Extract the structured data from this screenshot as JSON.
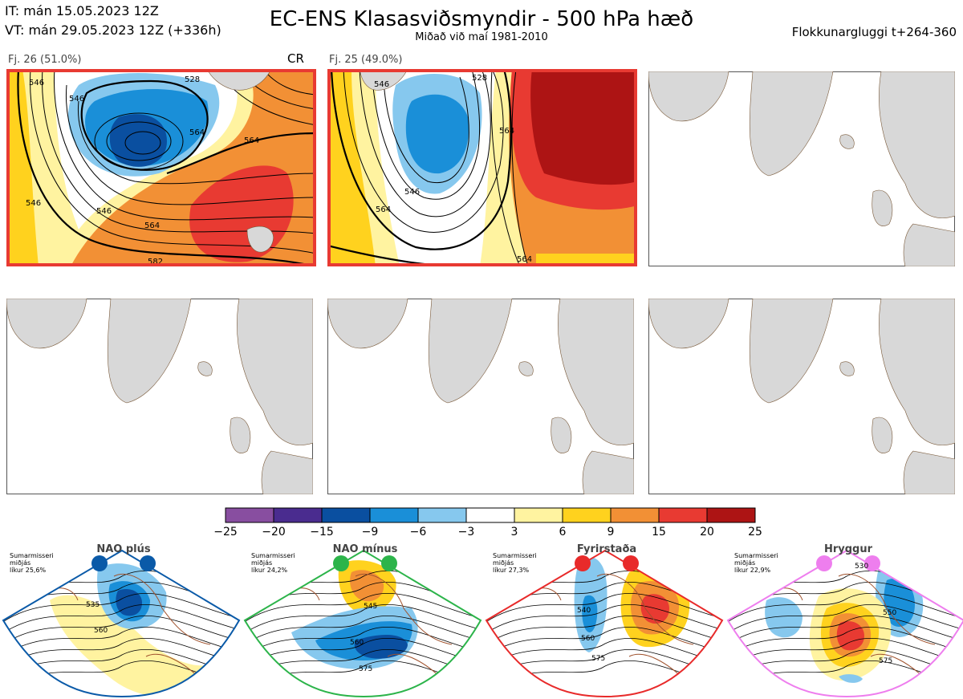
{
  "header": {
    "it": "IT: mán 15.05.2023 12Z",
    "vt": "VT: mán 29.05.2023 12Z  (+336h)",
    "title": "EC-ENS Klasasviðsmyndir - 500 hPa hæð",
    "subtitle": "Miðað við maí 1981-2010",
    "window": "Flokkunargluggi t+264-360"
  },
  "panels": [
    {
      "label": "Fj. 26 (51.0%)",
      "tag": "CR",
      "contours": [
        "546",
        "528",
        "546",
        "564",
        "546",
        "564",
        "564",
        "546",
        "582"
      ]
    },
    {
      "label": "Fj. 25 (49.0%)",
      "contours": [
        "528",
        "546",
        "564",
        "546",
        "564",
        "564"
      ]
    }
  ],
  "colorbar": {
    "ticks": [
      "−25",
      "−20",
      "−15",
      "−9",
      "−6",
      "−3",
      "3",
      "6",
      "9",
      "15",
      "20",
      "25"
    ],
    "colors": [
      "#884ea0",
      "#4a2c8f",
      "#0a4fa0",
      "#1a8fd8",
      "#86c8ee",
      "#ffffff",
      "#fff3a0",
      "#ffd21e",
      "#f29035",
      "#e83a32",
      "#ad1414"
    ]
  },
  "regimes": [
    {
      "name": "NAO plús",
      "info": [
        "Sumarmisseri",
        "miðjás",
        "líkur 25,6%"
      ],
      "color": "#0a5aa8",
      "labels": [
        "535",
        "560"
      ]
    },
    {
      "name": "NAO mínus",
      "info": [
        "Sumarmisseri",
        "miðjás",
        "líkur 24,2%"
      ],
      "color": "#2cb44a",
      "labels": [
        "545",
        "560",
        "575"
      ]
    },
    {
      "name": "Fyrirstaða",
      "info": [
        "Sumarmisseri",
        "miðjás",
        "líkur 27,3%"
      ],
      "color": "#e82a2a",
      "labels": [
        "540",
        "560",
        "575"
      ]
    },
    {
      "name": "Hryggur",
      "info": [
        "Sumarmisseri",
        "miðjás",
        "líkur 22,9%"
      ],
      "color": "#ee7eee",
      "labels": [
        "530",
        "550",
        "575"
      ]
    }
  ]
}
